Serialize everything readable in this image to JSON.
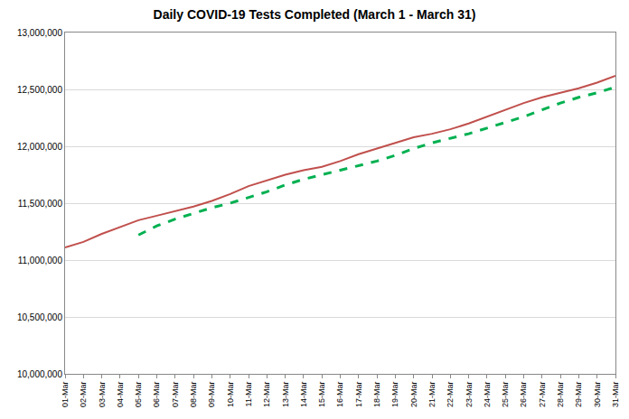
{
  "chart_data": {
    "type": "line",
    "title": "Daily COVID-19 Tests Completed (March 1 - March 31)",
    "categories": [
      "01-Mar",
      "02-Mar",
      "03-Mar",
      "04-Mar",
      "05-Mar",
      "06-Mar",
      "07-Mar",
      "08-Mar",
      "09-Mar",
      "10-Mar",
      "11-Mar",
      "12-Mar",
      "13-Mar",
      "14-Mar",
      "15-Mar",
      "16-Mar",
      "17-Mar",
      "18-Mar",
      "19-Mar",
      "20-Mar",
      "21-Mar",
      "22-Mar",
      "23-Mar",
      "24-Mar",
      "25-Mar",
      "26-Mar",
      "27-Mar",
      "28-Mar",
      "29-Mar",
      "30-Mar",
      "31-Mar"
    ],
    "series": [
      {
        "color": "#c0504d",
        "line_style": "solid",
        "values": [
          11110000,
          11160000,
          11230000,
          11290000,
          11350000,
          11390000,
          11430000,
          11470000,
          11520000,
          11580000,
          11650000,
          11700000,
          11750000,
          11790000,
          11820000,
          11870000,
          11930000,
          11980000,
          12030000,
          12080000,
          12110000,
          12150000,
          12200000,
          12260000,
          12320000,
          12380000,
          12430000,
          12470000,
          12510000,
          12560000,
          12620000
        ]
      },
      {
        "color": "#00b050",
        "line_style": "dashed",
        "values": [
          null,
          null,
          null,
          null,
          11220000,
          11300000,
          11360000,
          11410000,
          11460000,
          11500000,
          11550000,
          11600000,
          11660000,
          11710000,
          11750000,
          11790000,
          11830000,
          11870000,
          11920000,
          11980000,
          12030000,
          12070000,
          12110000,
          12160000,
          12210000,
          12260000,
          12320000,
          12380000,
          12430000,
          12470000,
          12520000
        ]
      }
    ],
    "ylim": [
      10000000,
      13000000
    ],
    "yticks": [
      {
        "value": 10000000,
        "label": "10,000,000"
      },
      {
        "value": 10500000,
        "label": "10,500,000"
      },
      {
        "value": 11000000,
        "label": "11,000,000"
      },
      {
        "value": 11500000,
        "label": "11,500,000"
      },
      {
        "value": 12000000,
        "label": "12,000,000"
      },
      {
        "value": 12500000,
        "label": "12,500,000"
      },
      {
        "value": 13000000,
        "label": "13,000,000"
      }
    ],
    "grid": true
  }
}
